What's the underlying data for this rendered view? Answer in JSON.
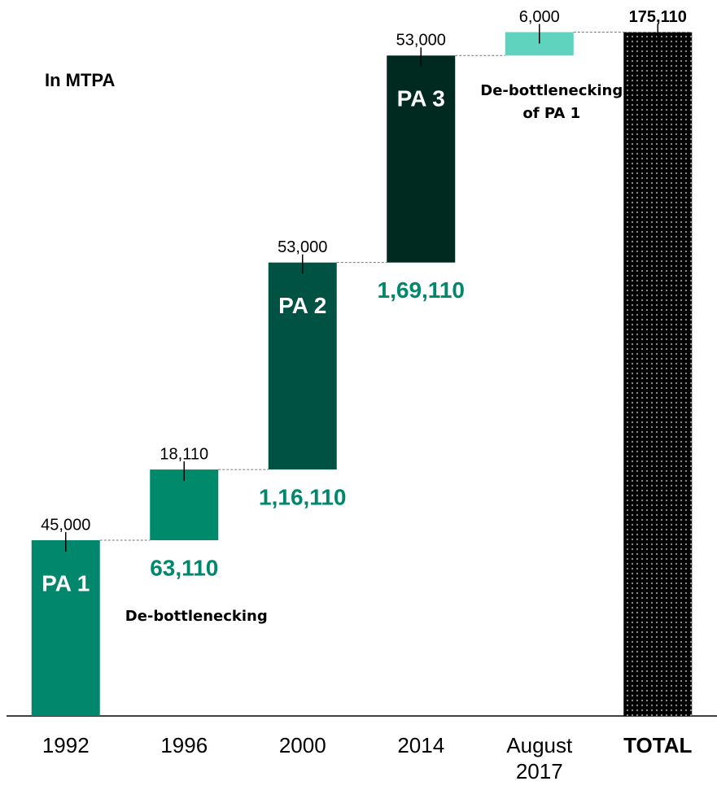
{
  "chart_data": {
    "type": "waterfall",
    "subtitle": "In MTPA",
    "categories": [
      "1992",
      "1996",
      "2000",
      "2014",
      "August 2017",
      "TOTAL"
    ],
    "values": [
      45000,
      18110,
      53000,
      53000,
      6000,
      175110
    ],
    "value_labels": [
      "45,000",
      "18,110",
      "53,000",
      "53,000",
      "6,000",
      "175,110"
    ],
    "is_total": [
      false,
      false,
      false,
      false,
      false,
      true
    ],
    "colors": [
      "#00876c",
      "#008a6c",
      "#005243",
      "#00291f",
      "#5fd3bd",
      "#000000"
    ],
    "bar_labels": [
      "PA 1",
      null,
      "PA 2",
      "PA 3",
      null,
      null
    ],
    "running_total_labels": [
      null,
      "63,110",
      "1,16,110",
      "1,69,110",
      null,
      null
    ],
    "notes": [
      null,
      "De-bottlenecking",
      null,
      null,
      "De-bottlenecking of PA 1",
      null
    ],
    "ylim": [
      0,
      180000
    ]
  }
}
